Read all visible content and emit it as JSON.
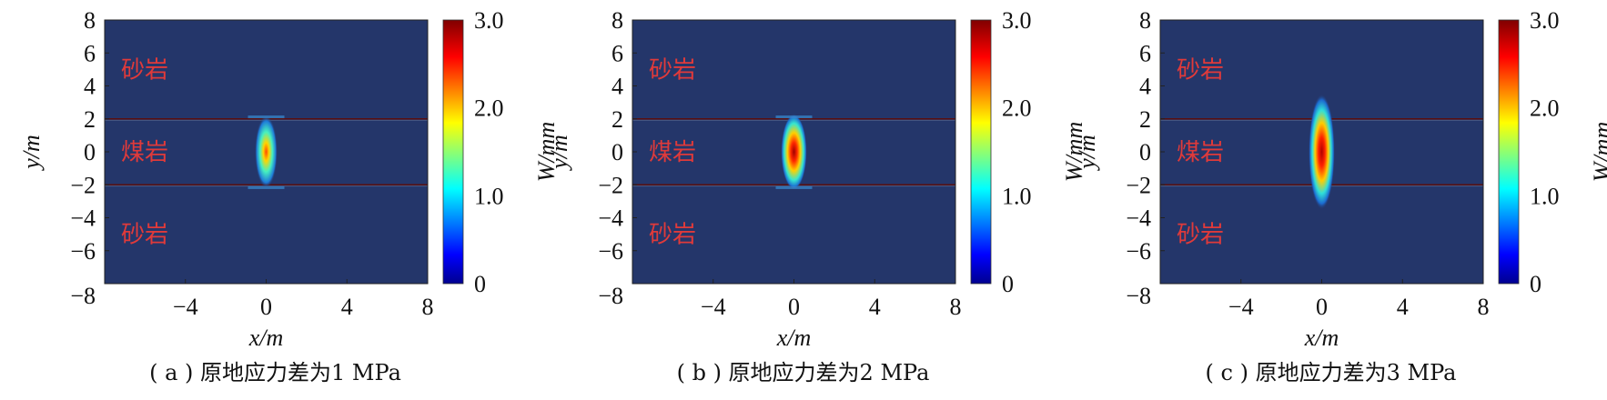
{
  "chart_data": [
    {
      "type": "heatmap",
      "id": "a",
      "caption": "( a ) 原地应力差为1 MPa",
      "xlabel": "x/m",
      "ylabel": "y/m",
      "xticks": [
        -4,
        0,
        4,
        8
      ],
      "xtick_labels": [
        "−4",
        "0",
        "4",
        "8"
      ],
      "yticks": [
        8,
        6,
        4,
        2,
        0,
        -2,
        -4,
        -6,
        -8
      ],
      "ytick_labels": [
        "8",
        "6",
        "4",
        "2",
        "0",
        "−2",
        "−4",
        "−6",
        "−8"
      ],
      "xlim": [
        -8,
        8
      ],
      "ylim": [
        -8,
        8
      ],
      "layers": [
        {
          "name": "砂岩",
          "y_from": 2,
          "y_to": 8
        },
        {
          "name": "煤岩",
          "y_from": -2,
          "y_to": 2
        },
        {
          "name": "砂岩",
          "y_from": -8,
          "y_to": -2
        }
      ],
      "interfaces_y": [
        2,
        -2
      ],
      "fracture": {
        "x_center": 0,
        "y_top": 2.2,
        "y_bottom": -2.2,
        "max_width_mm": 2.0
      },
      "colorbar": {
        "label": "W/mm",
        "min": 0,
        "max": 3.0,
        "ticks": [
          "0",
          "1.0",
          "2.0",
          "3.0"
        ]
      }
    },
    {
      "type": "heatmap",
      "id": "b",
      "caption": "( b ) 原地应力差为2 MPa",
      "xlabel": "x/m",
      "ylabel": "y/m",
      "xticks": [
        -4,
        0,
        4,
        8
      ],
      "xtick_labels": [
        "−4",
        "0",
        "4",
        "8"
      ],
      "yticks": [
        8,
        6,
        4,
        2,
        0,
        -2,
        -4,
        -6,
        -8
      ],
      "ytick_labels": [
        "8",
        "6",
        "4",
        "2",
        "0",
        "−2",
        "−4",
        "−6",
        "−8"
      ],
      "xlim": [
        -8,
        8
      ],
      "ylim": [
        -8,
        8
      ],
      "layers": [
        {
          "name": "砂岩",
          "y_from": 2,
          "y_to": 8
        },
        {
          "name": "煤岩",
          "y_from": -2,
          "y_to": 2
        },
        {
          "name": "砂岩",
          "y_from": -8,
          "y_to": -2
        }
      ],
      "interfaces_y": [
        2,
        -2
      ],
      "fracture": {
        "x_center": 0,
        "y_top": 2.3,
        "y_bottom": -2.3,
        "max_width_mm": 2.8
      },
      "colorbar": {
        "label": "W/mm",
        "min": 0,
        "max": 3.0,
        "ticks": [
          "0",
          "1.0",
          "2.0",
          "3.0"
        ]
      }
    },
    {
      "type": "heatmap",
      "id": "c",
      "caption": "( c ) 原地应力差为3 MPa",
      "xlabel": "x/m",
      "ylabel": "y/m",
      "xticks": [
        -4,
        0,
        4,
        8
      ],
      "xtick_labels": [
        "−4",
        "0",
        "4",
        "8"
      ],
      "yticks": [
        8,
        6,
        4,
        2,
        0,
        -2,
        -4,
        -6,
        -8
      ],
      "ytick_labels": [
        "8",
        "6",
        "4",
        "2",
        "0",
        "−2",
        "−4",
        "−6",
        "−8"
      ],
      "xlim": [
        -8,
        8
      ],
      "ylim": [
        -8,
        8
      ],
      "layers": [
        {
          "name": "砂岩",
          "y_from": 2,
          "y_to": 8
        },
        {
          "name": "煤岩",
          "y_from": -2,
          "y_to": 2
        },
        {
          "name": "砂岩",
          "y_from": -8,
          "y_to": -2
        }
      ],
      "interfaces_y": [
        2,
        -2
      ],
      "fracture": {
        "x_center": 0,
        "y_top": 3.5,
        "y_bottom": -3.5,
        "max_width_mm": 2.9
      },
      "colorbar": {
        "label": "W/mm",
        "min": 0,
        "max": 3.0,
        "ticks": [
          "0",
          "1.0",
          "2.0",
          "3.0"
        ]
      }
    }
  ]
}
